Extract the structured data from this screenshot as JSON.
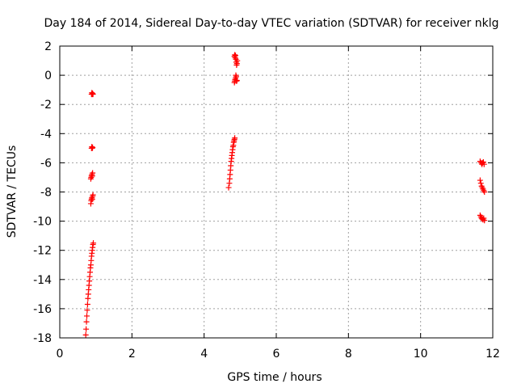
{
  "chart_data": {
    "type": "scatter",
    "title": "Day 184 of 2014, Sidereal Day-to-day VTEC variation (SDTVAR) for receiver nklg",
    "xlabel": "GPS time / hours",
    "ylabel": "SDTVAR / TECUs",
    "xlim": [
      0,
      12
    ],
    "ylim": [
      -18,
      2
    ],
    "xticks": [
      0,
      2,
      4,
      6,
      8,
      10,
      12
    ],
    "xtick_labels": [
      "0",
      "2",
      "4",
      "6",
      "8",
      "10",
      "12"
    ],
    "yticks": [
      -18,
      -16,
      -14,
      -12,
      -10,
      -8,
      -6,
      -4,
      -2,
      0,
      2
    ],
    "ytick_labels": [
      "-18",
      "-16",
      "-14",
      "-12",
      "-10",
      "-8",
      "-6",
      "-4",
      "-2",
      "0",
      "2"
    ],
    "grid": true,
    "marker": "+",
    "series": [
      {
        "name": "SDTVAR",
        "color": "#ff0000",
        "x": [
          0.72,
          0.73,
          0.74,
          0.75,
          0.76,
          0.77,
          0.78,
          0.79,
          0.8,
          0.81,
          0.82,
          0.83,
          0.84,
          0.85,
          0.86,
          0.87,
          0.88,
          0.89,
          0.9,
          0.91,
          0.92,
          0.93,
          0.86,
          0.87,
          0.88,
          0.89,
          0.9,
          0.91,
          0.92,
          0.86,
          0.87,
          0.88,
          0.89,
          0.9,
          0.91,
          0.88,
          0.89,
          0.9,
          0.91,
          0.88,
          0.89,
          0.9,
          0.91,
          0.92,
          4.68,
          4.7,
          4.71,
          4.72,
          4.73,
          4.74,
          4.75,
          4.76,
          4.77,
          4.78,
          4.79,
          4.8,
          4.81,
          4.82,
          4.83,
          4.84,
          4.85,
          4.84,
          4.85,
          4.86,
          4.87,
          4.88,
          4.89,
          4.9,
          4.91,
          4.92,
          4.84,
          4.85,
          4.86,
          4.87,
          4.88,
          4.89,
          4.9,
          4.91,
          11.65,
          11.68,
          11.7,
          11.72,
          11.74,
          11.76,
          11.65,
          11.67,
          11.69,
          11.71,
          11.73,
          11.75,
          11.77,
          11.65,
          11.67,
          11.69,
          11.71,
          11.73,
          11.75,
          11.77
        ],
        "y": [
          -17.8,
          -17.4,
          -16.9,
          -16.5,
          -16.1,
          -15.7,
          -15.3,
          -15.0,
          -14.7,
          -14.4,
          -14.1,
          -13.8,
          -13.5,
          -13.2,
          -13.0,
          -12.7,
          -12.4,
          -12.2,
          -12.0,
          -11.8,
          -11.6,
          -11.5,
          -8.8,
          -8.6,
          -8.5,
          -8.4,
          -8.5,
          -8.3,
          -8.2,
          -7.1,
          -7.0,
          -6.9,
          -6.8,
          -6.9,
          -6.7,
          -5.0,
          -4.9,
          -5.0,
          -4.95,
          -1.3,
          -1.2,
          -1.3,
          -1.25,
          -1.3,
          -7.7,
          -7.4,
          -7.1,
          -6.8,
          -6.5,
          -6.2,
          -5.9,
          -5.7,
          -5.5,
          -5.3,
          -5.1,
          -4.9,
          -4.8,
          -4.6,
          -4.5,
          -4.4,
          -4.3,
          1.3,
          1.4,
          1.2,
          1.35,
          1.1,
          0.9,
          0.7,
          0.8,
          1.0,
          -0.5,
          -0.4,
          -0.3,
          -0.2,
          0.0,
          -0.1,
          -0.4,
          -0.35,
          -5.9,
          -6.0,
          -6.1,
          -6.0,
          -5.95,
          -6.1,
          -7.2,
          -7.4,
          -7.6,
          -7.7,
          -7.8,
          -7.9,
          -8.0,
          -9.6,
          -9.7,
          -9.8,
          -9.85,
          -9.9,
          -9.8,
          -9.95
        ]
      }
    ]
  }
}
